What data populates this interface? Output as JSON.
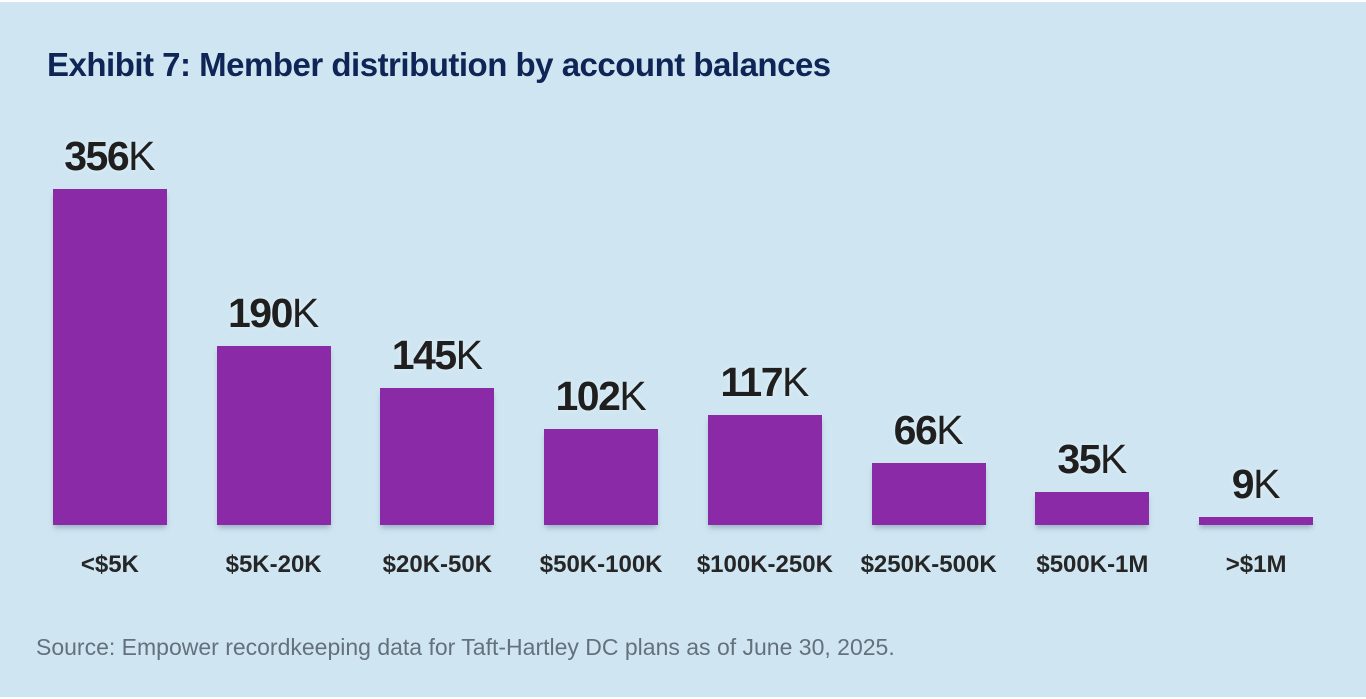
{
  "page": {
    "title": "Exhibit 7: Member distribution by account balances",
    "source_note": "Source: Empower recordkeeping data for Taft-Hartley DC plans as of June 30, 2025."
  },
  "colors": {
    "background": "#cfe6f2",
    "bar": "#8a2aa6",
    "title_text": "#0f2556",
    "value_label_text": "#1f1f1f",
    "tick_label_text": "#262626",
    "source_text": "#64717c"
  },
  "chart_data": {
    "type": "bar",
    "title": "Exhibit 7: Member distribution by account balances",
    "categories": [
      "<$5K",
      "$5K-20K",
      "$20K-50K",
      "$50K-100K",
      "$100K-250K",
      "$250K-500K",
      "$500K-1M",
      ">$1M"
    ],
    "values": [
      356,
      190,
      145,
      102,
      117,
      66,
      35,
      9
    ],
    "value_labels": [
      "356K",
      "190K",
      "145K",
      "102K",
      "117K",
      "66K",
      "35K",
      "9K"
    ],
    "unit": "K",
    "xlabel": "",
    "ylabel": "",
    "ylim": [
      0,
      356
    ],
    "grid": false,
    "legend": false,
    "bar_color": "#8a2aa6",
    "source": "Source: Empower recordkeeping data for Taft-Hartley DC plans as of June 30, 2025."
  }
}
